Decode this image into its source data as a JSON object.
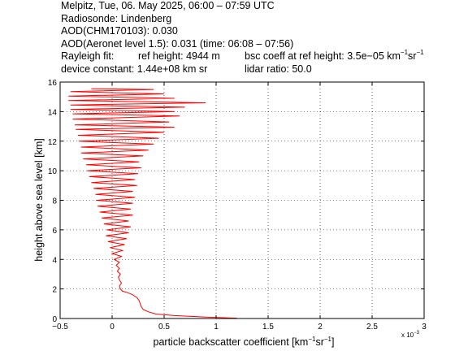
{
  "header": {
    "line1": "Melpitz, Tue, 06. May 2025, 06:00 – 07:59 UTC",
    "line2": "Radiosonde: Lindenberg",
    "line3": "AOD(CHM170103): 0.030",
    "line4": "AOD(Aeronet level 1.5): 0.031   (time: 06:08 – 07:56)",
    "rayleigh_label": "Rayleigh fit:",
    "ref_height": "ref height: 4944 m",
    "bsc_coeff_prefix": "bsc coeff at ref height: 3.5e−05 km",
    "bsc_exp1": "−1",
    "bsc_mid": "sr",
    "bsc_exp2": "−1",
    "device_constant": "device constant: 1.44e+08 km sr",
    "lidar_ratio": "lidar ratio: 50.0"
  },
  "colors": {
    "profile": "#ff0000",
    "axes": "#000000",
    "grid": "#000000"
  },
  "chart_data": {
    "type": "line",
    "xlabel_prefix": "particle backscatter coefficient [km",
    "xlabel_exp1": "−1",
    "xlabel_mid": "sr",
    "xlabel_exp2": "−1",
    "xlabel_suffix": "]",
    "ylabel": "height above sea level [km]",
    "x_multiplier": "x 10",
    "x_multiplier_exp": "−3",
    "xlim": [
      -0.5,
      3
    ],
    "ylim": [
      0,
      16
    ],
    "xticks": [
      -0.5,
      0,
      0.5,
      1,
      1.5,
      2,
      2.5,
      3
    ],
    "xtick_labels": [
      "−0.5",
      "0",
      "0.5",
      "1",
      "1.5",
      "2",
      "2.5",
      "3"
    ],
    "yticks": [
      0,
      2,
      4,
      6,
      8,
      10,
      12,
      14,
      16
    ],
    "ytick_labels": [
      "0",
      "2",
      "4",
      "6",
      "8",
      "10",
      "12",
      "14",
      "16"
    ],
    "grid": true,
    "series": [
      {
        "points": [
          [
            1.2,
            0.02
          ],
          [
            0.9,
            0.1
          ],
          [
            0.6,
            0.2
          ],
          [
            0.42,
            0.3
          ],
          [
            0.35,
            0.45
          ],
          [
            0.3,
            0.6
          ],
          [
            0.28,
            0.8
          ],
          [
            0.27,
            1.0
          ],
          [
            0.26,
            1.2
          ],
          [
            0.24,
            1.4
          ],
          [
            0.2,
            1.6
          ],
          [
            0.15,
            1.75
          ],
          [
            0.1,
            1.85
          ],
          [
            0.08,
            2.0
          ],
          [
            0.07,
            2.2
          ],
          [
            0.09,
            2.4
          ],
          [
            0.07,
            2.6
          ],
          [
            0.06,
            2.8
          ],
          [
            0.08,
            3.0
          ],
          [
            0.05,
            3.2
          ],
          [
            0.07,
            3.4
          ],
          [
            0.04,
            3.6
          ],
          [
            0.07,
            3.8
          ],
          [
            0.02,
            4.0
          ],
          [
            0.09,
            4.2
          ],
          [
            0.0,
            4.4
          ],
          [
            0.1,
            4.6
          ],
          [
            -0.02,
            4.8
          ],
          [
            0.12,
            5.0
          ],
          [
            -0.04,
            5.2
          ],
          [
            0.14,
            5.4
          ],
          [
            -0.06,
            5.6
          ],
          [
            0.16,
            5.8
          ],
          [
            -0.05,
            6.0
          ],
          [
            0.18,
            6.2
          ],
          [
            -0.08,
            6.4
          ],
          [
            0.16,
            6.6
          ],
          [
            -0.1,
            6.8
          ],
          [
            0.2,
            7.0
          ],
          [
            -0.12,
            7.2
          ],
          [
            0.18,
            7.4
          ],
          [
            -0.14,
            7.6
          ],
          [
            0.2,
            7.8
          ],
          [
            -0.15,
            8.0
          ],
          [
            0.22,
            8.2
          ],
          [
            -0.16,
            8.4
          ],
          [
            0.2,
            8.6
          ],
          [
            -0.18,
            8.8
          ],
          [
            0.24,
            9.0
          ],
          [
            -0.2,
            9.2
          ],
          [
            0.22,
            9.4
          ],
          [
            -0.22,
            9.6
          ],
          [
            0.25,
            9.8
          ],
          [
            -0.24,
            10.0
          ],
          [
            0.28,
            10.2
          ],
          [
            -0.25,
            10.4
          ],
          [
            0.26,
            10.6
          ],
          [
            -0.28,
            10.8
          ],
          [
            0.3,
            11.0
          ],
          [
            -0.3,
            11.2
          ],
          [
            0.35,
            11.4
          ],
          [
            -0.3,
            11.6
          ],
          [
            0.4,
            11.8
          ],
          [
            -0.32,
            12.0
          ],
          [
            0.45,
            12.2
          ],
          [
            -0.33,
            12.4
          ],
          [
            0.5,
            12.6
          ],
          [
            -0.35,
            12.8
          ],
          [
            0.6,
            12.95
          ],
          [
            -0.36,
            13.1
          ],
          [
            0.55,
            13.3
          ],
          [
            -0.38,
            13.5
          ],
          [
            0.65,
            13.7
          ],
          [
            -0.38,
            13.85
          ],
          [
            0.6,
            14.0
          ],
          [
            -0.4,
            14.15
          ],
          [
            0.7,
            14.3
          ],
          [
            -0.4,
            14.45
          ],
          [
            0.9,
            14.6
          ],
          [
            -0.42,
            14.75
          ],
          [
            0.6,
            14.9
          ],
          [
            -0.42,
            15.05
          ],
          [
            0.5,
            15.2
          ],
          [
            -0.4,
            15.35
          ],
          [
            0.4,
            15.5
          ],
          [
            -0.2,
            15.55
          ]
        ]
      }
    ]
  }
}
